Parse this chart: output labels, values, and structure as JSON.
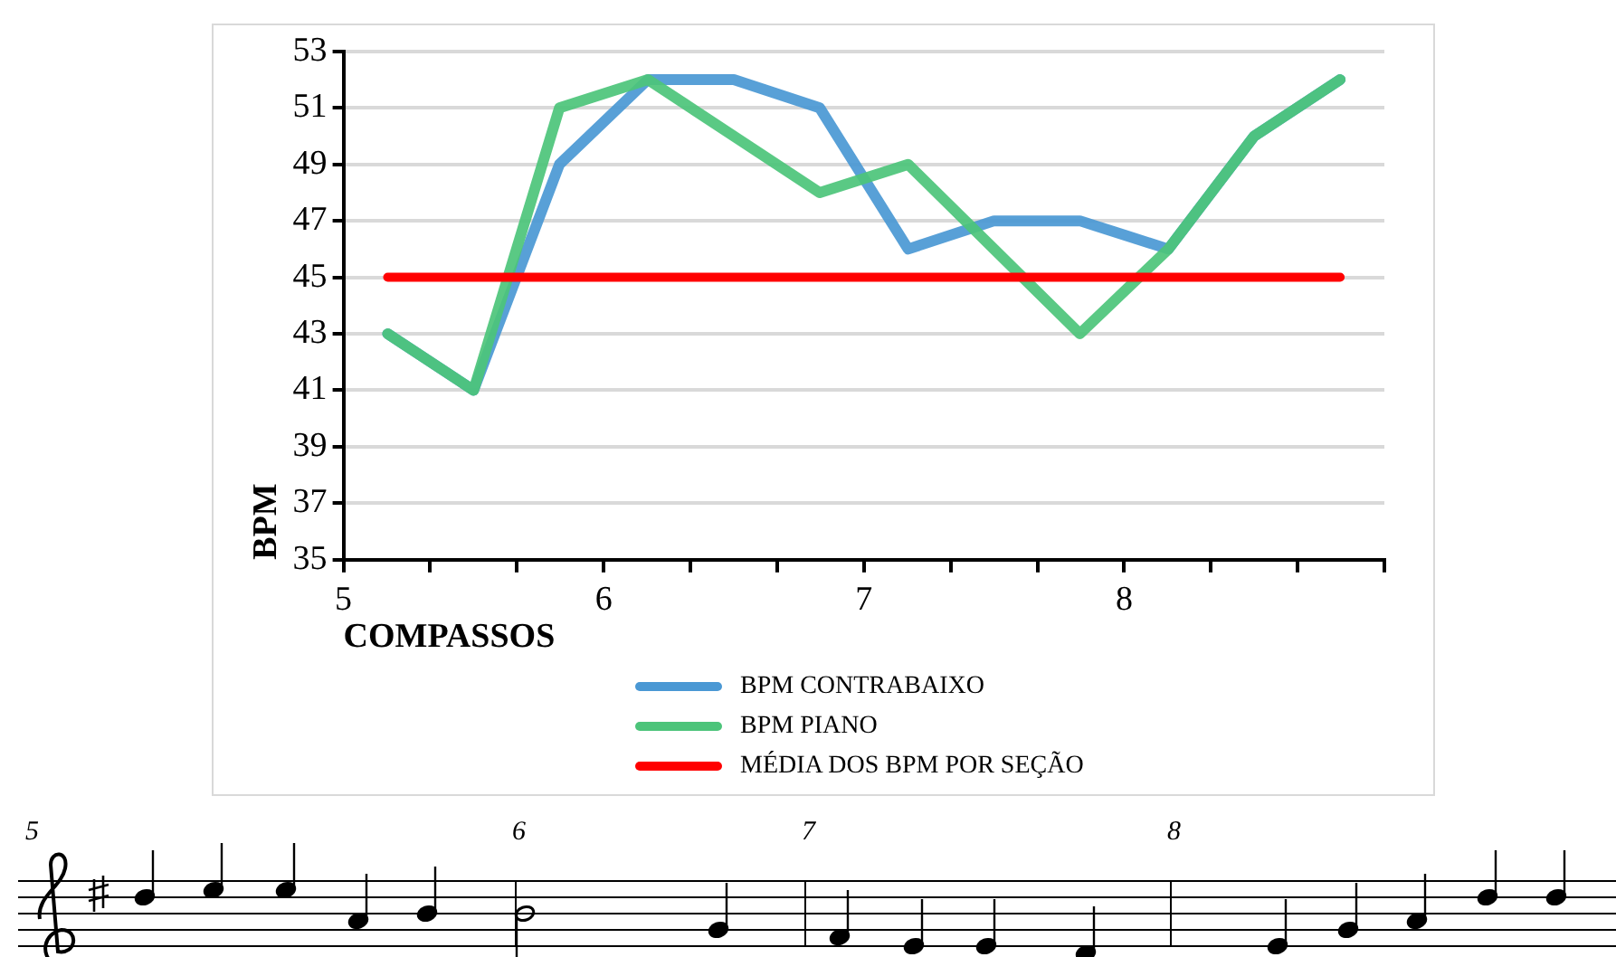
{
  "chart_data": {
    "type": "line",
    "xlabel": "COMPASSOS",
    "ylabel": "BPM",
    "x": [
      5.17,
      5.5,
      5.83,
      6.17,
      6.5,
      6.83,
      7.17,
      7.5,
      7.83,
      8.17,
      8.5,
      8.83
    ],
    "series": [
      {
        "name": "BPM CONTRABAIXO",
        "color": "#4a98d4",
        "values": [
          43,
          41,
          49,
          52,
          52,
          51,
          46,
          47,
          47,
          46,
          50,
          52
        ]
      },
      {
        "name": "BPM PIANO",
        "color": "#4cc47a",
        "values": [
          43,
          41,
          51,
          52,
          50,
          48,
          49,
          46,
          43,
          46,
          50,
          52
        ]
      },
      {
        "name": "MÉDIA DOS BPM POR SEÇÃO",
        "color": "#ff0000",
        "values": [
          45,
          45,
          45,
          45,
          45,
          45,
          45,
          45,
          45,
          45,
          45,
          45
        ]
      }
    ],
    "xlim": [
      5,
      9
    ],
    "xticks": [
      5,
      {
        "value": 5.333,
        "label": null
      },
      {
        "value": 5.667,
        "label": null
      },
      6,
      {
        "value": 6.333,
        "label": null
      },
      {
        "value": 6.667,
        "label": null
      },
      7,
      {
        "value": 7.333,
        "label": null
      },
      {
        "value": 7.667,
        "label": null
      },
      8,
      {
        "value": 8.333,
        "label": null
      },
      {
        "value": 8.667,
        "label": null
      },
      {
        "value": 9,
        "label": null
      }
    ],
    "ylim": [
      35,
      53
    ],
    "yticks": [
      35,
      37,
      39,
      41,
      43,
      45,
      47,
      49,
      51,
      53
    ],
    "grid": "y",
    "legend": "bottom",
    "marker": "none",
    "line_style": "solid",
    "annotations": [
      "5",
      "6",
      "7",
      "8"
    ]
  }
}
